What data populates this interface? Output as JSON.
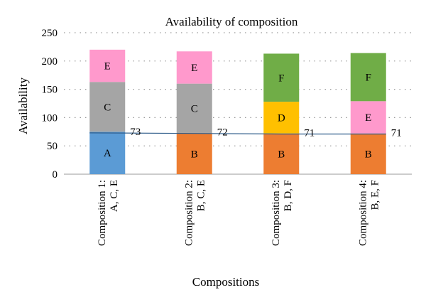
{
  "chart_data": {
    "type": "bar",
    "stacked": true,
    "title": "Availability of composition",
    "xlabel": "Compositions",
    "ylabel": "Availability",
    "ylim": [
      0,
      250
    ],
    "yticks": [
      0,
      50,
      100,
      150,
      200,
      250
    ],
    "grid": true,
    "categories": [
      [
        "Composition 1:",
        "A, C, E"
      ],
      [
        "Composition 2:",
        "B, C, E"
      ],
      [
        "Composition 3:",
        "B, D, F"
      ],
      [
        "Composition 4:",
        "B, E, F"
      ]
    ],
    "bars": [
      {
        "segments": [
          {
            "label": "A",
            "value": 75,
            "color": "#5b9bd5"
          },
          {
            "label": "C",
            "value": 88,
            "color": "#a5a5a5"
          },
          {
            "label": "E",
            "value": 57,
            "color": "#ff99cc"
          }
        ]
      },
      {
        "segments": [
          {
            "label": "B",
            "value": 72,
            "color": "#ed7d31"
          },
          {
            "label": "C",
            "value": 88,
            "color": "#a5a5a5"
          },
          {
            "label": "E",
            "value": 57,
            "color": "#ff99cc"
          }
        ]
      },
      {
        "segments": [
          {
            "label": "B",
            "value": 72,
            "color": "#ed7d31"
          },
          {
            "label": "D",
            "value": 56,
            "color": "#ffc000"
          },
          {
            "label": "F",
            "value": 85,
            "color": "#70ad47"
          }
        ]
      },
      {
        "segments": [
          {
            "label": "B",
            "value": 72,
            "color": "#ed7d31"
          },
          {
            "label": "E",
            "value": 57,
            "color": "#ff99cc"
          },
          {
            "label": "F",
            "value": 85,
            "color": "#70ad47"
          }
        ]
      }
    ],
    "line": {
      "values": [
        73,
        72,
        71,
        71
      ],
      "color": "#2e5c8a"
    }
  }
}
